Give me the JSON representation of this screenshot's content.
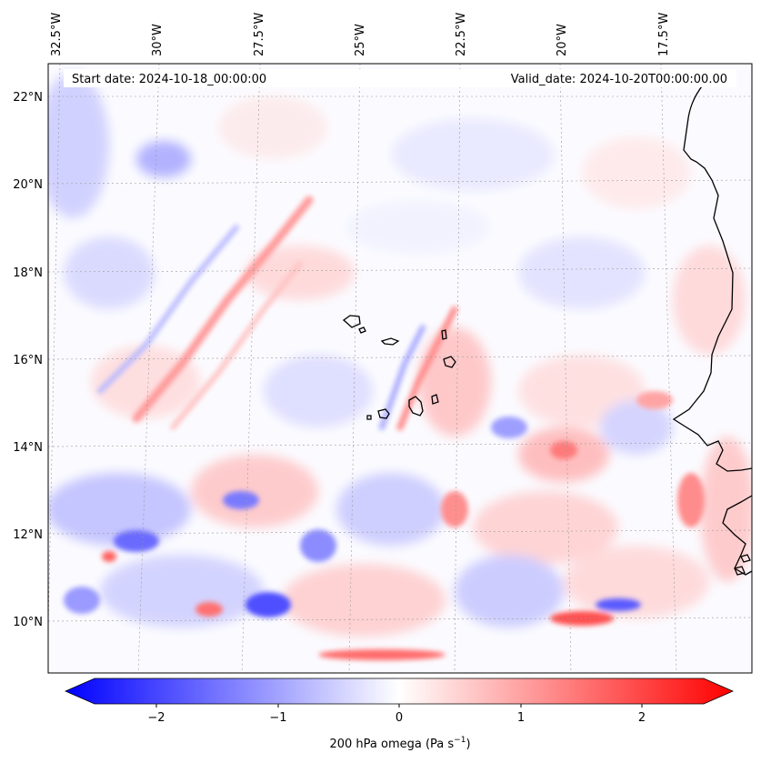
{
  "header": {
    "start_date": "Start date: 2024-10-18_00:00:00",
    "valid_date": "Valid_date: 2024-10-20T00:00:00.00"
  },
  "map": {
    "lon_labels": [
      "32.5°W",
      "30°W",
      "27.5°W",
      "25°W",
      "22.5°W",
      "20°W",
      "17.5°W"
    ],
    "lat_labels": [
      "22°N",
      "20°N",
      "18°N",
      "16°N",
      "14°N",
      "12°N",
      "10°N"
    ],
    "field_colors": {
      "negative": "#0000ff",
      "zero": "#ffffff",
      "positive": "#ff0000"
    }
  },
  "colorbar": {
    "tick_labels": [
      "−2",
      "−1",
      "0",
      "1",
      "2"
    ],
    "range": [
      -2.7,
      2.7
    ],
    "label": "200 hPa omega (Pa s",
    "label_sup": "−1",
    "label_end": ")"
  }
}
